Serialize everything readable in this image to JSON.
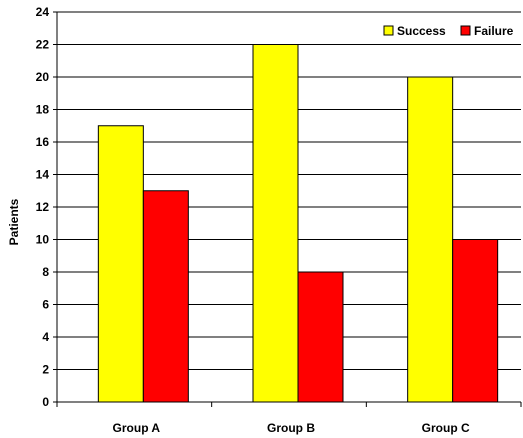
{
  "chart_data": {
    "type": "bar",
    "title": "",
    "xlabel": "",
    "ylabel": "Patients",
    "ylim": [
      0,
      24
    ],
    "yticks": [
      0,
      2,
      4,
      6,
      8,
      10,
      12,
      14,
      16,
      18,
      20,
      22,
      24
    ],
    "grid": true,
    "legend_position": "top-right",
    "categories": [
      "Group A",
      "Group B",
      "Group C"
    ],
    "series": [
      {
        "name": "Success",
        "values": [
          17,
          22,
          20
        ],
        "color": "#FFFF00"
      },
      {
        "name": "Failure",
        "values": [
          13,
          8,
          10
        ],
        "color": "#FF0000"
      }
    ]
  }
}
